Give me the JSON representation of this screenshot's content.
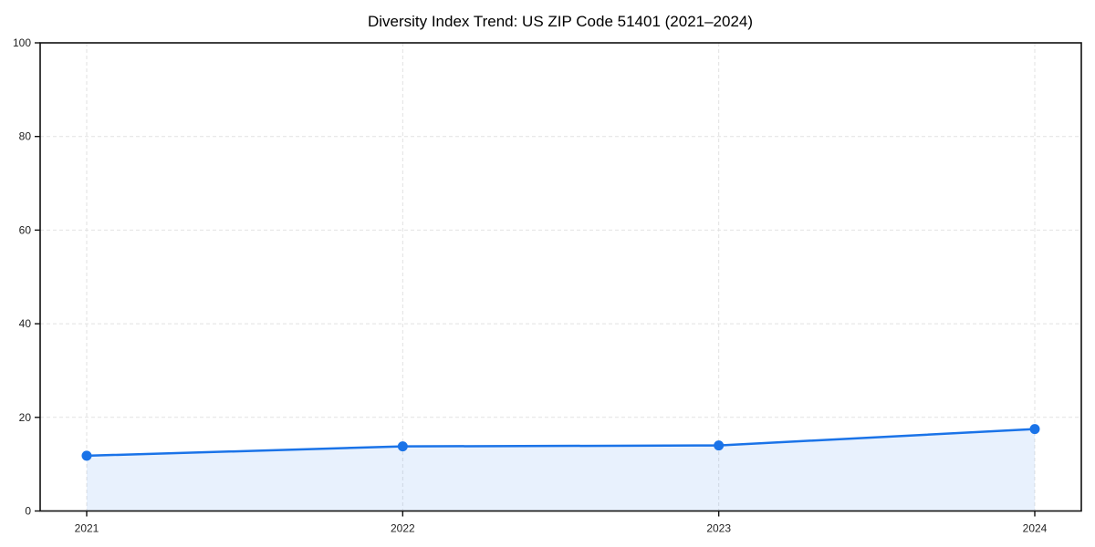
{
  "chart_data": {
    "type": "line",
    "title": "Diversity Index Trend: US ZIP Code 51401 (2021–2024)",
    "series_name": "Diversity Index",
    "x": [
      "2021",
      "2022",
      "2023",
      "2024"
    ],
    "values": [
      11.8,
      13.8,
      14.0,
      17.5
    ],
    "xlabel": "",
    "ylabel": "",
    "ylim": [
      0,
      100
    ],
    "yticks": [
      0,
      20,
      40,
      60,
      80,
      100
    ],
    "grid": true,
    "grid_style": "dashed",
    "legend_position": "none",
    "marker": "circle",
    "area_fill": true,
    "colors": {
      "line": "#1a73e8",
      "marker": "#1a73e8",
      "area": "rgba(26,115,232,0.10)",
      "grid": "#e2e2e2",
      "axis": "#111111",
      "tick_label": "#222222",
      "title": "#000000",
      "background": "#ffffff"
    }
  }
}
